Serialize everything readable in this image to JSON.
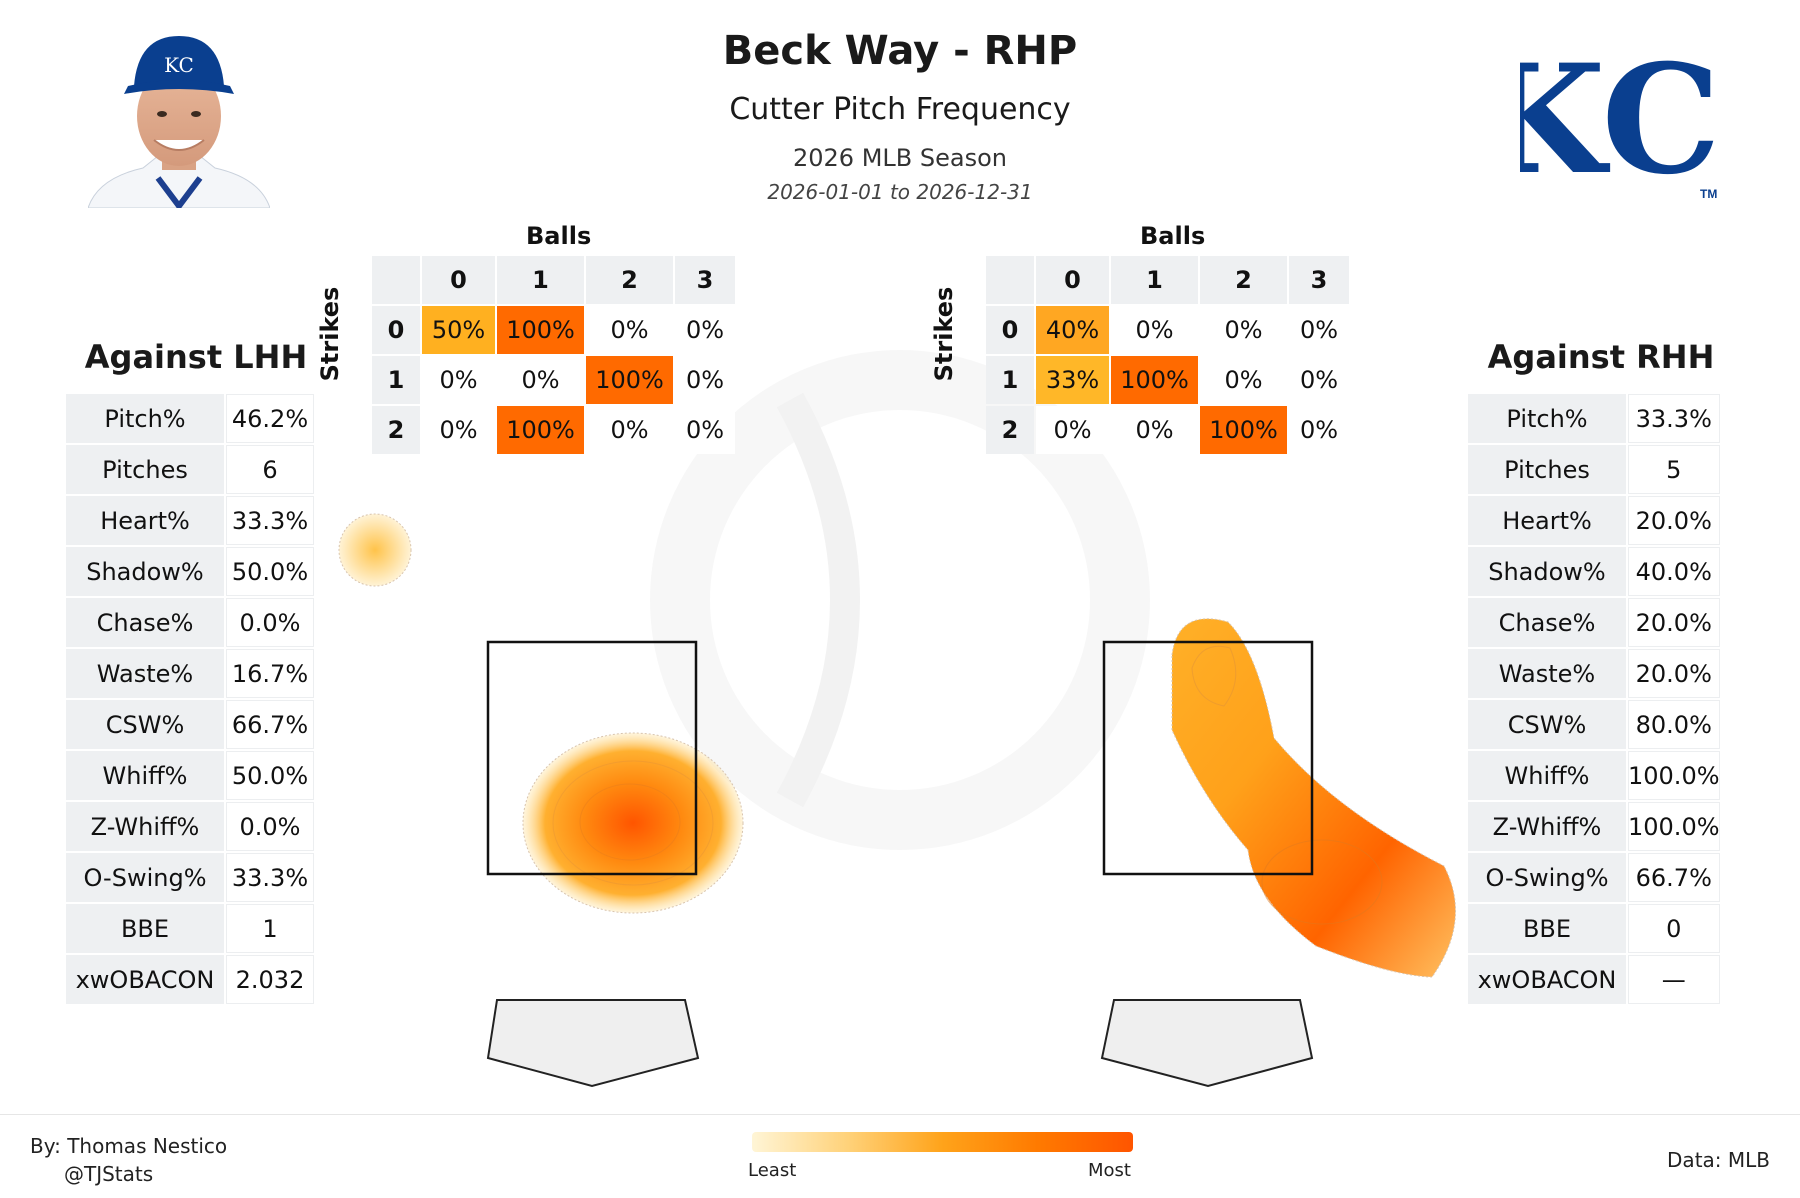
{
  "header": {
    "title": "Beck Way - RHP",
    "subtitle": "Cutter Pitch Frequency",
    "season": "2026 MLB Season",
    "date_range": "2026-01-01 to 2026-12-31",
    "team_logo_text": "KC",
    "team_logo_tm": "TM"
  },
  "colors": {
    "kc_blue": "#0a3f8f",
    "heat_low": "#ffd27a",
    "heat_mid": "#ffa31a",
    "heat_high": "#ff5500",
    "cell_50": "#ffb020",
    "cell_100": "#ff6a00",
    "cell_40": "#ffa722",
    "cell_33": "#ffb728"
  },
  "lhh": {
    "title": "Against LHH",
    "stats": [
      {
        "label": "Pitch%",
        "value": "46.2%"
      },
      {
        "label": "Pitches",
        "value": "6"
      },
      {
        "label": "Heart%",
        "value": "33.3%"
      },
      {
        "label": "Shadow%",
        "value": "50.0%"
      },
      {
        "label": "Chase%",
        "value": "0.0%"
      },
      {
        "label": "Waste%",
        "value": "16.7%"
      },
      {
        "label": "CSW%",
        "value": "66.7%"
      },
      {
        "label": "Whiff%",
        "value": "50.0%"
      },
      {
        "label": "Z-Whiff%",
        "value": "0.0%"
      },
      {
        "label": "O-Swing%",
        "value": "33.3%"
      },
      {
        "label": "BBE",
        "value": "1"
      },
      {
        "label": "xwOBACON",
        "value": "2.032"
      }
    ],
    "count_grid": {
      "balls_label": "Balls",
      "strikes_label": "Strikes",
      "ball_headers": [
        "0",
        "1",
        "2",
        "3"
      ],
      "strike_headers": [
        "0",
        "1",
        "2"
      ],
      "cells": [
        [
          "50%",
          "100%",
          "0%",
          "0%"
        ],
        [
          "0%",
          "0%",
          "100%",
          "0%"
        ],
        [
          "0%",
          "100%",
          "0%",
          "0%"
        ]
      ]
    }
  },
  "rhh": {
    "title": "Against RHH",
    "stats": [
      {
        "label": "Pitch%",
        "value": "33.3%"
      },
      {
        "label": "Pitches",
        "value": "5"
      },
      {
        "label": "Heart%",
        "value": "20.0%"
      },
      {
        "label": "Shadow%",
        "value": "40.0%"
      },
      {
        "label": "Chase%",
        "value": "20.0%"
      },
      {
        "label": "Waste%",
        "value": "20.0%"
      },
      {
        "label": "CSW%",
        "value": "80.0%"
      },
      {
        "label": "Whiff%",
        "value": "100.0%"
      },
      {
        "label": "Z-Whiff%",
        "value": "100.0%"
      },
      {
        "label": "O-Swing%",
        "value": "66.7%"
      },
      {
        "label": "BBE",
        "value": "0"
      },
      {
        "label": "xwOBACON",
        "value": "—"
      }
    ],
    "count_grid": {
      "balls_label": "Balls",
      "strikes_label": "Strikes",
      "ball_headers": [
        "0",
        "1",
        "2",
        "3"
      ],
      "strike_headers": [
        "0",
        "1",
        "2"
      ],
      "cells": [
        [
          "40%",
          "0%",
          "0%",
          "0%"
        ],
        [
          "33%",
          "100%",
          "0%",
          "0%"
        ],
        [
          "0%",
          "0%",
          "100%",
          "0%"
        ]
      ]
    }
  },
  "footer": {
    "byline": "By: Thomas Nestico",
    "handle": "@TJStats",
    "data_source": "Data: MLB",
    "legend_least": "Least",
    "legend_most": "Most"
  },
  "chart_data": [
    {
      "type": "table",
      "title": "",
      "xlabel": "Balls",
      "ylabel": "Strikes",
      "columns": [
        "0",
        "1",
        "2",
        "3"
      ],
      "rows": [
        "0",
        "1",
        "2"
      ],
      "values": [
        [
          50,
          100,
          0,
          0
        ],
        [
          0,
          0,
          100,
          0
        ],
        [
          0,
          100,
          0,
          0
        ]
      ],
      "unit": "%"
    },
    {
      "type": "table",
      "title": "",
      "xlabel": "Balls",
      "ylabel": "Strikes",
      "columns": [
        "0",
        "1",
        "2",
        "3"
      ],
      "rows": [
        "0",
        "1",
        "2"
      ],
      "values": [
        [
          40,
          0,
          0,
          0
        ],
        [
          33,
          100,
          0,
          0
        ],
        [
          0,
          0,
          100,
          0
        ]
      ],
      "unit": "%"
    },
    {
      "type": "heatmap",
      "title": "",
      "series": [
        {
          "values": []
        }
      ],
      "legend": "bottom-center",
      "colorscale": [
        "#fff5d6",
        "#ffa31a",
        "#ff5500"
      ],
      "grid": false
    },
    {
      "type": "heatmap",
      "title": "",
      "series": [
        {
          "values": []
        }
      ],
      "legend": "bottom-center",
      "colorscale": [
        "#fff5d6",
        "#ffa31a",
        "#ff5500"
      ],
      "grid": false
    }
  ]
}
